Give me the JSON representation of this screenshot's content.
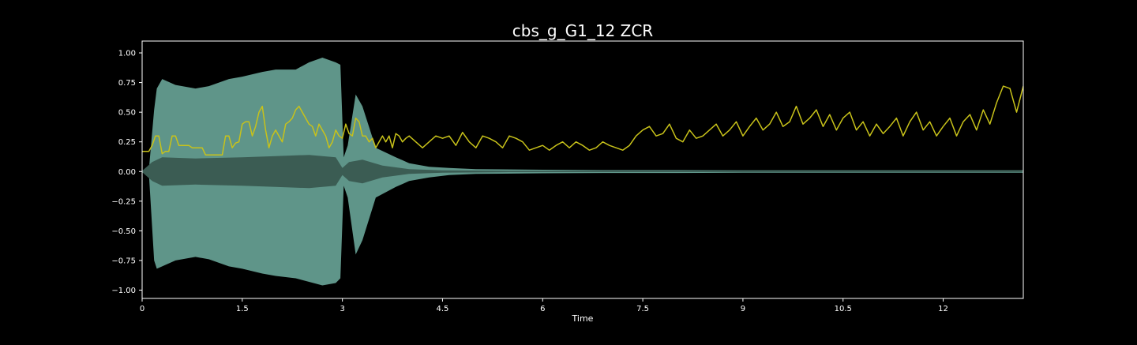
{
  "chart_data": {
    "type": "line",
    "title": "cbs_g_G1_12 ZCR",
    "xlabel": "Time",
    "ylabel": "",
    "xlim": [
      0,
      13.2
    ],
    "ylim": [
      -1.07,
      1.1
    ],
    "x_ticks": [
      0,
      1.5,
      3,
      4.5,
      6,
      7.5,
      9,
      10.5,
      12
    ],
    "x_tick_labels": [
      "0",
      "1.5",
      "3",
      "4.5",
      "6",
      "7.5",
      "9",
      "10.5",
      "12"
    ],
    "y_ticks": [
      1.0,
      0.75,
      0.5,
      0.25,
      0.0,
      -0.25,
      -0.5,
      -0.75,
      -1.0
    ],
    "y_tick_labels": [
      "1.00",
      "0.75",
      "0.50",
      "0.25",
      "0.00",
      "−0.25",
      "−0.50",
      "−0.75",
      "−1.00"
    ],
    "grid": false,
    "legend": "none",
    "colors": {
      "background": "#000000",
      "axes_edge": "#ffffff",
      "text": "#ffffff",
      "waveform_envelope": "#5f9589",
      "waveform_core": "#3b5c53",
      "zcr_line": "#c8c21a"
    },
    "series": [
      {
        "kind": "waveform_envelope",
        "x": [
          0,
          0.1,
          0.18,
          0.22,
          0.3,
          0.5,
          0.8,
          1.0,
          1.3,
          1.5,
          1.8,
          2.0,
          2.3,
          2.5,
          2.7,
          2.9,
          2.97,
          3.02,
          3.08,
          3.2,
          3.3,
          3.5,
          3.8,
          4.0,
          4.3,
          4.6,
          5.0,
          6.0,
          7.0,
          8.0,
          9.0,
          10.0,
          11.0,
          12.0,
          13.2
        ],
        "upper": [
          0.01,
          0.01,
          0.52,
          0.7,
          0.78,
          0.73,
          0.7,
          0.72,
          0.78,
          0.8,
          0.84,
          0.86,
          0.86,
          0.92,
          0.96,
          0.92,
          0.9,
          0.12,
          0.22,
          0.65,
          0.55,
          0.2,
          0.12,
          0.07,
          0.04,
          0.03,
          0.02,
          0.015,
          0.012,
          0.012,
          0.01,
          0.01,
          0.01,
          0.01,
          0.01
        ],
        "lower": [
          -0.01,
          -0.01,
          -0.75,
          -0.82,
          -0.8,
          -0.75,
          -0.72,
          -0.74,
          -0.8,
          -0.82,
          -0.86,
          -0.88,
          -0.9,
          -0.93,
          -0.96,
          -0.94,
          -0.9,
          -0.12,
          -0.22,
          -0.7,
          -0.58,
          -0.22,
          -0.13,
          -0.08,
          -0.05,
          -0.03,
          -0.02,
          -0.015,
          -0.012,
          -0.012,
          -0.01,
          -0.01,
          -0.01,
          -0.01,
          -0.01
        ]
      },
      {
        "kind": "waveform_core",
        "x": [
          0,
          0.15,
          0.3,
          0.8,
          1.5,
          2.0,
          2.5,
          2.9,
          3.0,
          3.1,
          3.3,
          3.6,
          4.0,
          4.5,
          5.5,
          13.2
        ],
        "upper": [
          0.005,
          0.08,
          0.12,
          0.11,
          0.12,
          0.13,
          0.14,
          0.12,
          0.03,
          0.08,
          0.1,
          0.05,
          0.02,
          0.01,
          0.005,
          0.005
        ],
        "lower": [
          -0.005,
          -0.08,
          -0.12,
          -0.11,
          -0.12,
          -0.13,
          -0.14,
          -0.12,
          -0.03,
          -0.08,
          -0.1,
          -0.05,
          -0.02,
          -0.01,
          -0.005,
          -0.005
        ]
      },
      {
        "kind": "zcr",
        "x": [
          0,
          0.1,
          0.15,
          0.2,
          0.25,
          0.3,
          0.35,
          0.4,
          0.45,
          0.5,
          0.55,
          0.6,
          0.65,
          0.7,
          0.75,
          0.8,
          0.85,
          0.9,
          0.95,
          1.0,
          1.05,
          1.1,
          1.15,
          1.2,
          1.25,
          1.3,
          1.35,
          1.4,
          1.45,
          1.5,
          1.55,
          1.6,
          1.65,
          1.7,
          1.75,
          1.8,
          1.85,
          1.9,
          1.95,
          2.0,
          2.05,
          2.1,
          2.15,
          2.2,
          2.25,
          2.3,
          2.35,
          2.4,
          2.45,
          2.5,
          2.55,
          2.6,
          2.65,
          2.7,
          2.75,
          2.8,
          2.85,
          2.9,
          2.95,
          3.0,
          3.05,
          3.1,
          3.15,
          3.2,
          3.25,
          3.3,
          3.35,
          3.4,
          3.45,
          3.5,
          3.55,
          3.6,
          3.65,
          3.7,
          3.75,
          3.8,
          3.85,
          3.9,
          3.95,
          4.0,
          4.1,
          4.2,
          4.3,
          4.4,
          4.5,
          4.6,
          4.7,
          4.8,
          4.9,
          5.0,
          5.1,
          5.2,
          5.3,
          5.4,
          5.5,
          5.6,
          5.7,
          5.8,
          5.9,
          6.0,
          6.1,
          6.2,
          6.3,
          6.4,
          6.5,
          6.6,
          6.7,
          6.8,
          6.9,
          7.0,
          7.1,
          7.2,
          7.3,
          7.4,
          7.5,
          7.6,
          7.7,
          7.8,
          7.9,
          8.0,
          8.1,
          8.2,
          8.3,
          8.4,
          8.5,
          8.6,
          8.7,
          8.8,
          8.9,
          9.0,
          9.1,
          9.2,
          9.3,
          9.4,
          9.5,
          9.6,
          9.7,
          9.8,
          9.9,
          10.0,
          10.1,
          10.2,
          10.3,
          10.4,
          10.5,
          10.6,
          10.7,
          10.8,
          10.9,
          11.0,
          11.1,
          11.2,
          11.3,
          11.4,
          11.5,
          11.6,
          11.7,
          11.8,
          11.9,
          12.0,
          12.1,
          12.2,
          12.3,
          12.4,
          12.5,
          12.6,
          12.7,
          12.8,
          12.9,
          13.0,
          13.1,
          13.2
        ],
        "y": [
          0.17,
          0.17,
          0.22,
          0.3,
          0.3,
          0.15,
          0.17,
          0.17,
          0.3,
          0.3,
          0.22,
          0.22,
          0.22,
          0.22,
          0.2,
          0.2,
          0.2,
          0.2,
          0.14,
          0.14,
          0.14,
          0.14,
          0.14,
          0.14,
          0.3,
          0.3,
          0.2,
          0.24,
          0.25,
          0.4,
          0.42,
          0.42,
          0.3,
          0.38,
          0.5,
          0.55,
          0.35,
          0.2,
          0.3,
          0.35,
          0.3,
          0.25,
          0.4,
          0.42,
          0.45,
          0.52,
          0.55,
          0.5,
          0.45,
          0.4,
          0.38,
          0.3,
          0.4,
          0.35,
          0.3,
          0.2,
          0.25,
          0.35,
          0.3,
          0.28,
          0.4,
          0.32,
          0.3,
          0.45,
          0.42,
          0.3,
          0.3,
          0.25,
          0.28,
          0.2,
          0.25,
          0.3,
          0.25,
          0.3,
          0.2,
          0.32,
          0.3,
          0.25,
          0.28,
          0.3,
          0.25,
          0.2,
          0.25,
          0.3,
          0.28,
          0.3,
          0.22,
          0.33,
          0.25,
          0.2,
          0.3,
          0.28,
          0.25,
          0.2,
          0.3,
          0.28,
          0.25,
          0.18,
          0.2,
          0.22,
          0.18,
          0.22,
          0.25,
          0.2,
          0.25,
          0.22,
          0.18,
          0.2,
          0.25,
          0.22,
          0.2,
          0.18,
          0.22,
          0.3,
          0.35,
          0.38,
          0.3,
          0.32,
          0.4,
          0.28,
          0.25,
          0.35,
          0.28,
          0.3,
          0.35,
          0.4,
          0.3,
          0.35,
          0.42,
          0.3,
          0.38,
          0.45,
          0.35,
          0.4,
          0.5,
          0.38,
          0.42,
          0.55,
          0.4,
          0.45,
          0.52,
          0.38,
          0.48,
          0.35,
          0.45,
          0.5,
          0.35,
          0.42,
          0.3,
          0.4,
          0.32,
          0.38,
          0.45,
          0.3,
          0.42,
          0.5,
          0.35,
          0.42,
          0.3,
          0.38,
          0.45,
          0.3,
          0.42,
          0.48,
          0.35,
          0.52,
          0.4,
          0.58,
          0.72,
          0.7,
          0.5,
          0.72
        ]
      }
    ]
  }
}
